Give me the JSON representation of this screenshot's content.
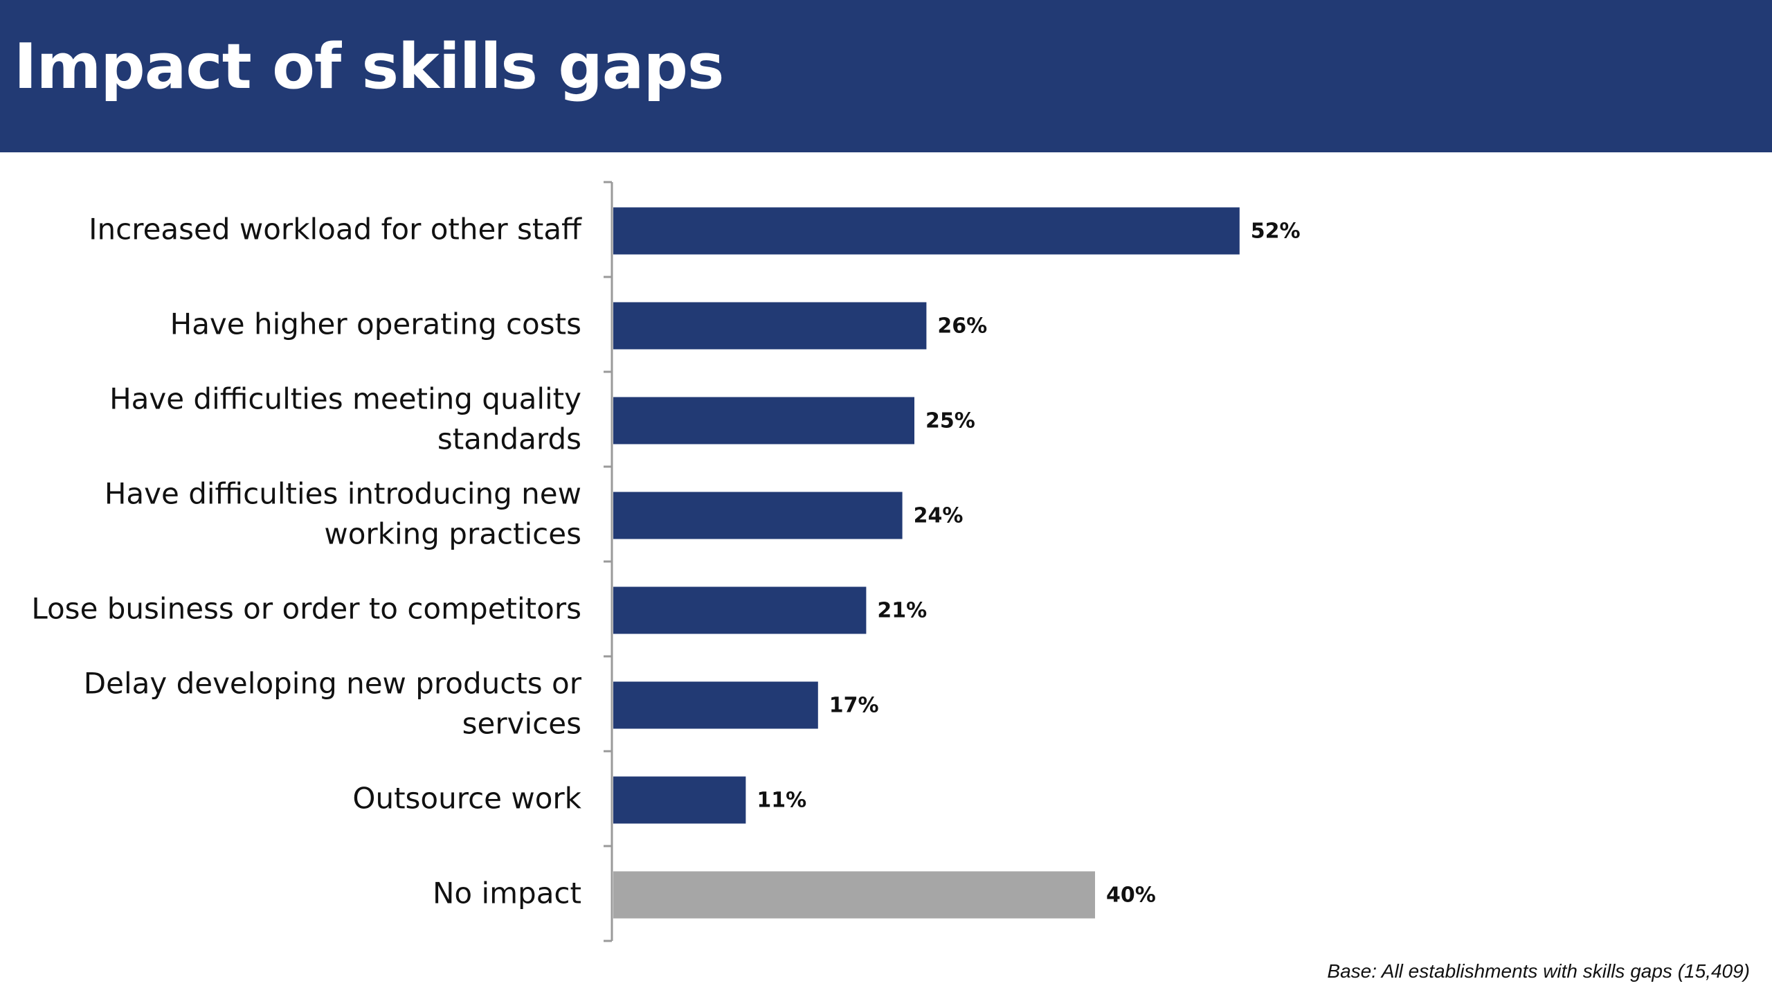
{
  "title": "Impact of skills gaps",
  "footnote": "Base: All establishments with skills gaps (15,409)",
  "colors": {
    "header_background": "#223a74",
    "bar_primary": "#223a74",
    "bar_no_impact": "#a6a6a6"
  },
  "chart_data": {
    "type": "bar",
    "orientation": "horizontal",
    "title": "Impact of skills gaps",
    "categories": [
      [
        "Increased workload for other staff"
      ],
      [
        "Have higher operating costs"
      ],
      [
        "Have difficulties meeting quality",
        "standards"
      ],
      [
        "Have difficulties introducing new",
        "working practices"
      ],
      [
        "Lose business or order to competitors"
      ],
      [
        "Delay developing new products or",
        "services"
      ],
      [
        "Outsource work"
      ],
      [
        "No impact"
      ]
    ],
    "values": [
      52,
      26,
      25,
      24,
      21,
      17,
      11,
      40
    ],
    "value_labels": [
      "52%",
      "26%",
      "25%",
      "24%",
      "21%",
      "17%",
      "11%",
      "40%"
    ],
    "bar_colors": [
      "#223a74",
      "#223a74",
      "#223a74",
      "#223a74",
      "#223a74",
      "#223a74",
      "#223a74",
      "#a6a6a6"
    ],
    "xlim": [
      0,
      100
    ],
    "grid": false,
    "legend": "none"
  }
}
